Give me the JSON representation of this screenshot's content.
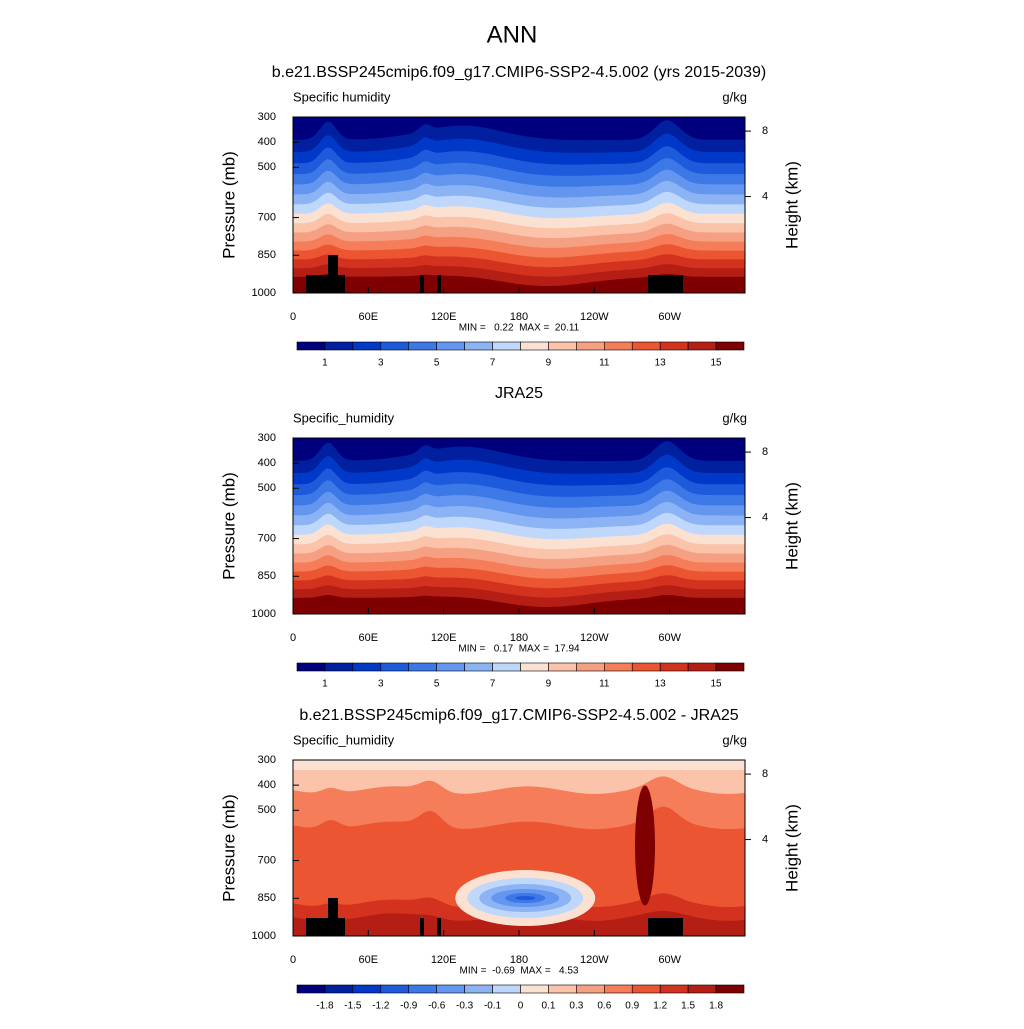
{
  "title": "ANN",
  "panels": [
    {
      "type": "contour",
      "title": "b.e21.BSSP245cmip6.f09_g17.CMIP6-SSP2-4.5.002 (yrs 2015-2039)",
      "left_label": "Specific humidity",
      "right_label": "g/kg",
      "y_label": "Pressure (mb)",
      "y2_label": "Height (km)",
      "ylim": [
        1000,
        300
      ],
      "yticks": [
        300,
        400,
        500,
        700,
        850,
        1000
      ],
      "y2ticks": [
        8,
        4
      ],
      "xlim": [
        0,
        360
      ],
      "xticks": [
        0,
        {
          "value": 60,
          "label": "60E"
        },
        {
          "value": 120,
          "label": "120E"
        },
        180,
        {
          "value": 240,
          "label": "120W"
        },
        {
          "value": 300,
          "label": "60W"
        }
      ],
      "stats": "MIN =   0.22  MAX =  20.11",
      "colorbar": {
        "colors": [
          "#00007f",
          "#0020a0",
          "#0038c8",
          "#1e5adc",
          "#3c78e6",
          "#6496f0",
          "#8cb4f5",
          "#bed7fa",
          "#fae1d2",
          "#fac3aa",
          "#f5a082",
          "#f57d5a",
          "#eb5532",
          "#d2321e",
          "#b41e14",
          "#7f0000"
        ],
        "ticks": [
          1,
          3,
          5,
          7,
          9,
          11,
          13,
          15
        ]
      }
    },
    {
      "type": "contour",
      "title": "JRA25",
      "left_label": "Specific_humidity",
      "right_label": "g/kg",
      "y_label": "Pressure (mb)",
      "y2_label": "Height (km)",
      "ylim": [
        1000,
        300
      ],
      "yticks": [
        300,
        400,
        500,
        700,
        850,
        1000
      ],
      "y2ticks": [
        8,
        4
      ],
      "xlim": [
        0,
        360
      ],
      "xticks": [
        0,
        {
          "value": 60,
          "label": "60E"
        },
        {
          "value": 120,
          "label": "120E"
        },
        180,
        {
          "value": 240,
          "label": "120W"
        },
        {
          "value": 300,
          "label": "60W"
        }
      ],
      "stats": "MIN =   0.17  MAX =  17.94",
      "colorbar": {
        "colors": [
          "#00007f",
          "#0020a0",
          "#0038c8",
          "#1e5adc",
          "#3c78e6",
          "#6496f0",
          "#8cb4f5",
          "#bed7fa",
          "#fae1d2",
          "#fac3aa",
          "#f5a082",
          "#f57d5a",
          "#eb5532",
          "#d2321e",
          "#b41e14",
          "#7f0000"
        ],
        "ticks": [
          1,
          3,
          5,
          7,
          9,
          11,
          13,
          15
        ]
      }
    },
    {
      "type": "contour-diff",
      "title": "b.e21.BSSP245cmip6.f09_g17.CMIP6-SSP2-4.5.002 - JRA25",
      "left_label": "Specific_humidity",
      "right_label": "g/kg",
      "y_label": "Pressure (mb)",
      "y2_label": "Height (km)",
      "ylim": [
        1000,
        300
      ],
      "yticks": [
        300,
        400,
        500,
        700,
        850,
        1000
      ],
      "y2ticks": [
        8,
        4
      ],
      "xlim": [
        0,
        360
      ],
      "xticks": [
        0,
        {
          "value": 60,
          "label": "60E"
        },
        {
          "value": 120,
          "label": "120E"
        },
        180,
        {
          "value": 240,
          "label": "120W"
        },
        {
          "value": 300,
          "label": "60W"
        }
      ],
      "stats": "MIN =  -0.69  MAX =   4.53",
      "colorbar": {
        "colors": [
          "#00007f",
          "#0020a0",
          "#0038c8",
          "#1e5adc",
          "#3c78e6",
          "#6496f0",
          "#8cb4f5",
          "#bed7fa",
          "#fae1d2",
          "#fac3aa",
          "#f5a082",
          "#f57d5a",
          "#eb5532",
          "#d2321e",
          "#b41e14",
          "#7f0000"
        ],
        "ticks": [
          -1.8,
          -1.5,
          -1.2,
          -0.9,
          -0.6,
          -0.3,
          -0.1,
          0,
          0.1,
          0.3,
          0.6,
          0.9,
          1.2,
          1.5,
          1.8
        ]
      }
    }
  ]
}
